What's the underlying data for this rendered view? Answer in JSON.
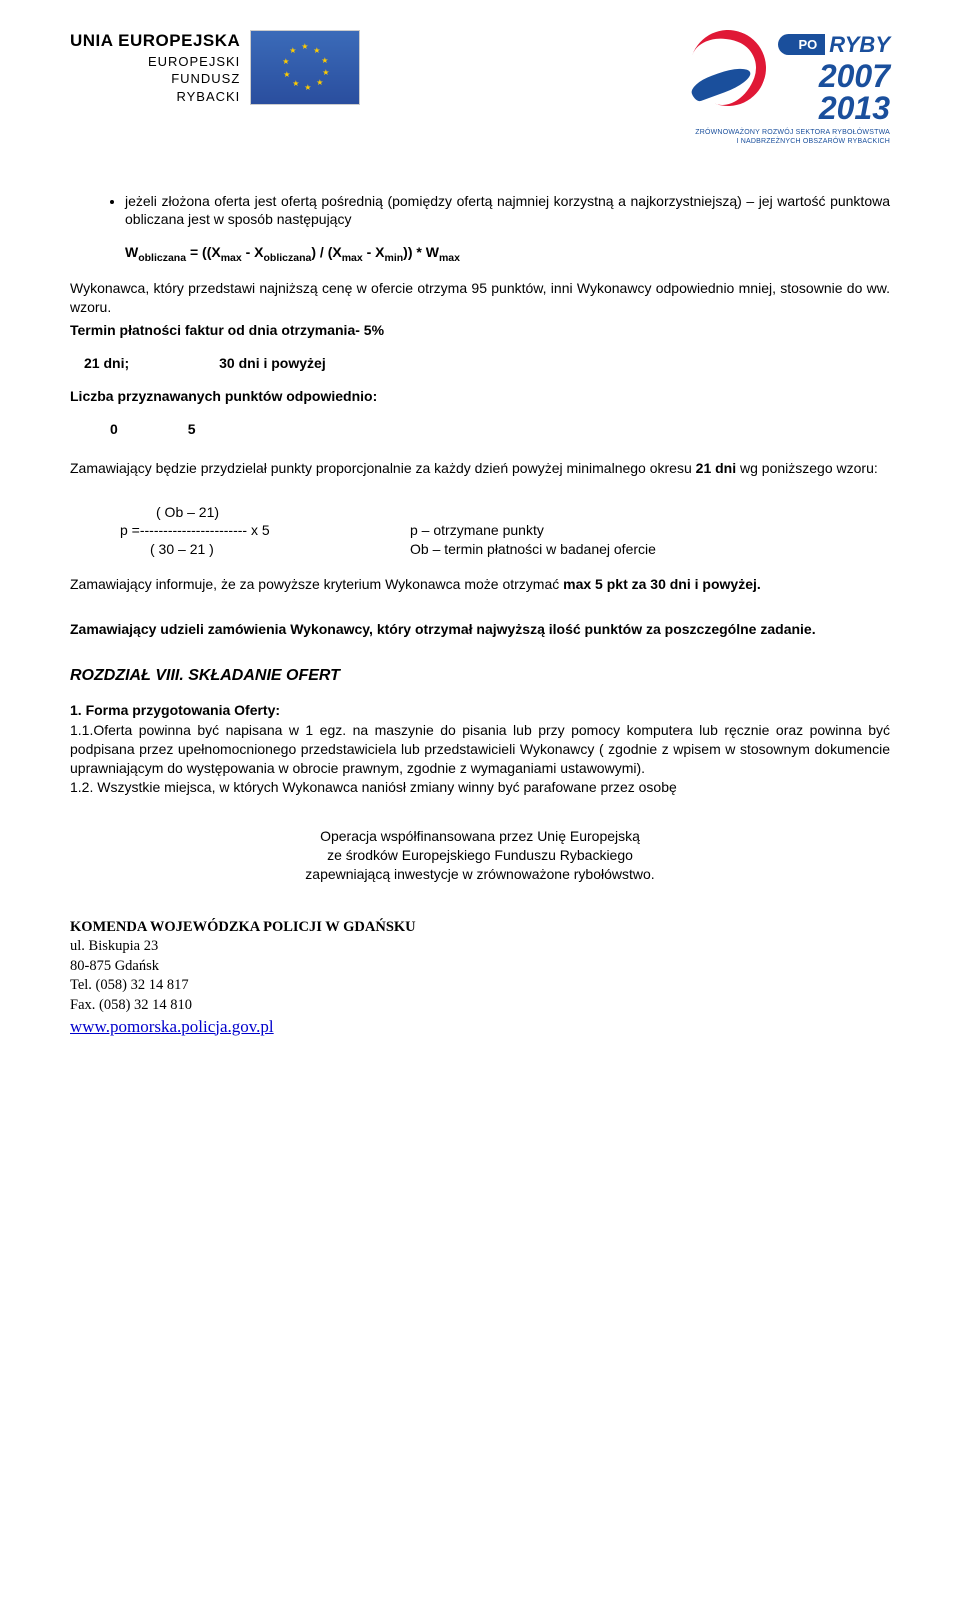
{
  "header": {
    "eu_label": {
      "line1": "UNIA EUROPEJSKA",
      "line2": "EUROPEJSKI",
      "line3": "FUNDUSZ",
      "line4": "RYBACKI"
    },
    "po_ryby": {
      "tag": "PO",
      "word": "RYBY",
      "year1": "2007",
      "year2": "2013",
      "sub1": "ZRÓWNOWAŻONY ROZWÓJ SEKTORA RYBOŁÓWSTWA",
      "sub2": "I NADBRZEŻNYCH OBSZARÓW RYBACKICH"
    }
  },
  "body": {
    "bullet1": "jeżeli złożona oferta jest ofertą pośrednią (pomiędzy ofertą najmniej korzystną a najkorzystniejszą) – jej wartość punktowa obliczana jest w sposób następujący",
    "formula_html": "W<sub>obliczana</sub> = ((X<sub>max</sub> - X<sub>obliczana</sub>) / (X<sub>max</sub> - X<sub>min</sub>)) * W<sub>max</sub>",
    "para_wykonawca": "Wykonawca, który przedstawi najniższą cenę w ofercie otrzyma 95 punktów, inni Wykonawcy odpowiednio mniej, stosownie do ww. wzoru.",
    "termin_heading": "Termin płatności faktur od dnia otrzymania- 5%",
    "days_left": "21 dni;",
    "days_right": "30 dni i powyżej",
    "liczba_heading": "Liczba przyznawanych punktów odpowiednio:",
    "points_0": "0",
    "points_5": "5",
    "para_proporcjonalnie_prefix": "Zamawiający będzie przydzielał punkty proporcjonalnie za każdy dzień powyżej minimalnego okresu ",
    "para_proporcjonalnie_bold": "21 dni",
    "para_proporcjonalnie_suffix": " wg poniższego wzoru:",
    "formula2": {
      "top": "( Ob – 21)",
      "mid_left": "p =----------------------- x 5",
      "bottom": "( 30 – 21 )",
      "right_top": "p – otrzymane punkty",
      "right_bottom": "Ob – termin płatności  w badanej ofercie"
    },
    "para_informuje_prefix": "Zamawiający informuje, że za powyższe kryterium Wykonawca może otrzymać ",
    "para_informuje_bold": "max 5 pkt za 30 dni i powyżej.",
    "para_udzieli": "Zamawiający udzieli zamówienia Wykonawcy, który otrzymał najwyższą ilość punktów za poszczególne zadanie.",
    "section8_title": "ROZDZIAŁ VIII. SKŁADANIE OFERT",
    "sec1_heading": "1. Forma przygotowania Oferty:",
    "sec1_1": "1.1.Oferta powinna być napisana w 1 egz. na maszynie do pisania lub przy pomocy komputera lub ręcznie oraz powinna być podpisana przez upełnomocnionego przedstawiciela lub przedstawicieli Wykonawcy ( zgodnie z wpisem w stosownym dokumencie uprawniającym do występowania w obrocie prawnym, zgodnie z wymaganiami ustawowymi).",
    "sec1_2": "1.2. Wszystkie miejsca, w których Wykonawca naniósł zmiany winny być parafowane przez osobę"
  },
  "footer": {
    "line1": "Operacja współfinansowana przez Unię Europejską",
    "line2": "ze środków Europejskiego Funduszu Rybackiego",
    "line3": "zapewniającą inwestycje w zrównoważone rybołówstwo.",
    "org": "KOMENDA WOJEWÓDZKA POLICJI W GDAŃSKU",
    "addr1": "ul. Biskupia 23",
    "addr2": "80-875 Gdańsk",
    "tel": "Tel. (058) 32 14 817",
    "fax": "Fax. (058) 32 14 810",
    "url": "www.pomorska.policja.gov.pl"
  }
}
